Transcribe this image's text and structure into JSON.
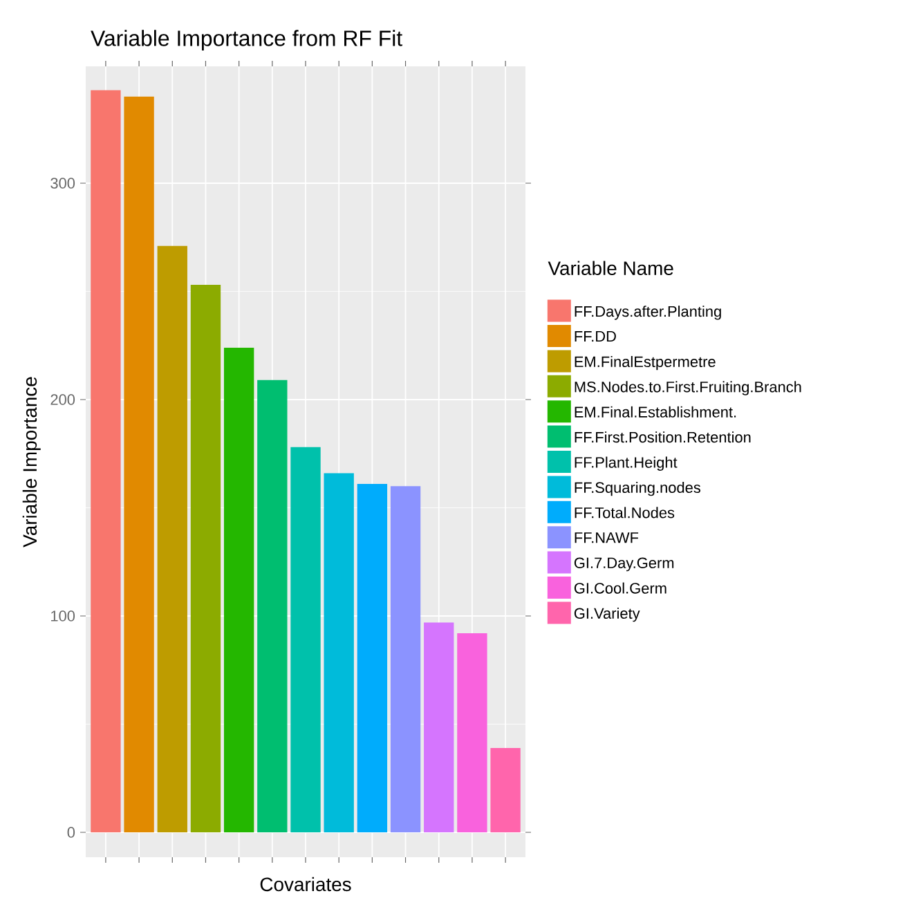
{
  "chart_data": {
    "type": "bar",
    "title": "Variable Importance from RF Fit",
    "xlabel": "Covariates",
    "ylabel": "Variable Importance",
    "legend_title": "Variable Name",
    "categories": [
      null,
      null,
      null,
      null,
      null,
      null,
      null,
      null,
      null,
      null,
      null,
      null,
      null
    ],
    "series": [
      {
        "name": "FF.Days.after.Planting",
        "color": "#f8766d",
        "values": [
          343,
          null,
          null,
          null,
          null,
          null,
          null,
          null,
          null,
          null,
          null,
          null,
          null
        ]
      },
      {
        "name": "FF.DD",
        "color": "#e18a00",
        "values": [
          null,
          340,
          null,
          null,
          null,
          null,
          null,
          null,
          null,
          null,
          null,
          null,
          null
        ]
      },
      {
        "name": "EM.FinalEstpermetre",
        "color": "#be9c00",
        "values": [
          null,
          null,
          271,
          null,
          null,
          null,
          null,
          null,
          null,
          null,
          null,
          null,
          null
        ]
      },
      {
        "name": "MS.Nodes.to.First.Fruiting.Branch",
        "color": "#8cab00",
        "values": [
          null,
          null,
          null,
          253,
          null,
          null,
          null,
          null,
          null,
          null,
          null,
          null,
          null
        ]
      },
      {
        "name": "EM.Final.Establishment.",
        "color": "#24b700",
        "values": [
          null,
          null,
          null,
          null,
          224,
          null,
          null,
          null,
          null,
          null,
          null,
          null,
          null
        ]
      },
      {
        "name": "FF.First.Position.Retention",
        "color": "#00be70",
        "values": [
          null,
          null,
          null,
          null,
          null,
          209,
          null,
          null,
          null,
          null,
          null,
          null,
          null
        ]
      },
      {
        "name": "FF.Plant.Height",
        "color": "#00c1ab",
        "values": [
          null,
          null,
          null,
          null,
          null,
          null,
          178,
          null,
          null,
          null,
          null,
          null,
          null
        ]
      },
      {
        "name": "FF.Squaring.nodes",
        "color": "#00bbda",
        "values": [
          null,
          null,
          null,
          null,
          null,
          null,
          null,
          166,
          null,
          null,
          null,
          null,
          null
        ]
      },
      {
        "name": "FF.Total.Nodes",
        "color": "#00acfc",
        "values": [
          null,
          null,
          null,
          null,
          null,
          null,
          null,
          null,
          161,
          null,
          null,
          null,
          null
        ]
      },
      {
        "name": "FF.NAWF",
        "color": "#8b93ff",
        "values": [
          null,
          null,
          null,
          null,
          null,
          null,
          null,
          null,
          null,
          160,
          null,
          null,
          null
        ]
      },
      {
        "name": "GI.7.Day.Germ",
        "color": "#d575fe",
        "values": [
          null,
          null,
          null,
          null,
          null,
          null,
          null,
          null,
          null,
          null,
          97,
          null,
          null
        ]
      },
      {
        "name": "GI.Cool.Germ",
        "color": "#f962dd",
        "values": [
          null,
          null,
          null,
          null,
          null,
          null,
          null,
          null,
          null,
          null,
          null,
          92,
          null
        ]
      },
      {
        "name": "GI.Variety",
        "color": "#ff65ac",
        "values": [
          null,
          null,
          null,
          null,
          null,
          null,
          null,
          null,
          null,
          null,
          null,
          null,
          39
        ]
      }
    ],
    "ylim": [
      -11.5,
      354
    ],
    "yticks": [
      0,
      100,
      200,
      300
    ],
    "grid": true,
    "legend": "right",
    "tick_labels": "y"
  }
}
